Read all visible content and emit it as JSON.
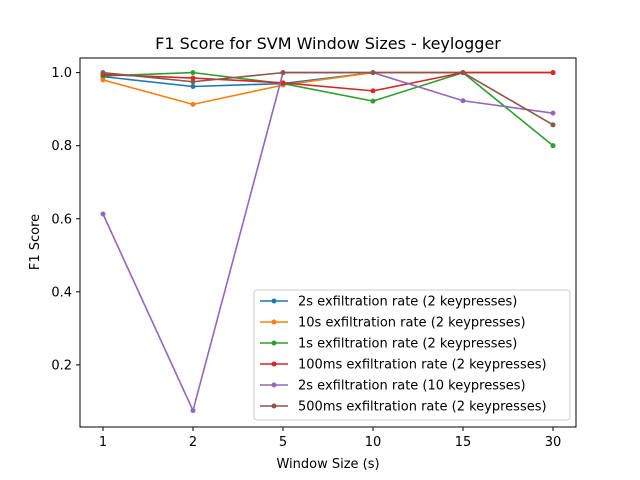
{
  "chart_data": {
    "type": "line",
    "title": "F1 Score for SVM Window Sizes - keylogger",
    "xlabel": "Window Size (s)",
    "ylabel": "F1 Score",
    "categories": [
      "1",
      "2",
      "5",
      "10",
      "15",
      "30"
    ],
    "y_ticks": [
      "0.2",
      "0.4",
      "0.6",
      "0.8",
      "1.0"
    ],
    "ylim": [
      0.03,
      1.04
    ],
    "grid": false,
    "legend_position": "lower-right",
    "series": [
      {
        "name": "2s exfiltration rate (2 keypresses)",
        "color": "#1f77b4",
        "values": [
          0.989,
          0.962,
          0.97,
          1.0,
          1.0,
          1.0
        ]
      },
      {
        "name": "10s exfiltration rate (2 keypresses)",
        "color": "#ff7f0e",
        "values": [
          0.98,
          0.913,
          0.966,
          1.0,
          1.0,
          1.0
        ]
      },
      {
        "name": "1s exfiltration rate (2 keypresses)",
        "color": "#2ca02c",
        "values": [
          0.991,
          1.0,
          0.97,
          0.922,
          1.0,
          0.8
        ]
      },
      {
        "name": "100ms exfiltration rate (2 keypresses)",
        "color": "#d62728",
        "values": [
          0.995,
          0.985,
          0.972,
          0.95,
          1.0,
          1.0
        ]
      },
      {
        "name": "2s exfiltration rate (10 keypresses)",
        "color": "#9467bd",
        "values": [
          0.613,
          0.075,
          1.0,
          1.0,
          0.923,
          0.889
        ]
      },
      {
        "name": "500ms exfiltration rate (2 keypresses)",
        "color": "#8c564b",
        "values": [
          1.0,
          0.975,
          1.0,
          1.0,
          1.0,
          0.857
        ]
      }
    ]
  }
}
